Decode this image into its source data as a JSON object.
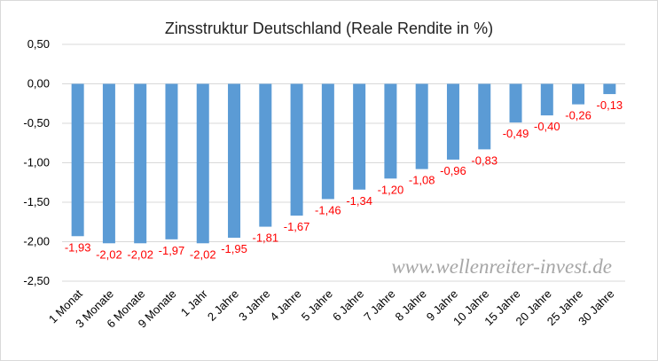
{
  "chart_data": {
    "type": "bar",
    "title": "Zinsstruktur Deutschland (Reale Rendite in %)",
    "categories": [
      "1 Monat",
      "3 Monate",
      "6 Monate",
      "9 Monate",
      "1 Jahr",
      "2 Jahre",
      "3 Jahre",
      "4 Jahre",
      "5 Jahre",
      "6 Jahre",
      "7 Jahre",
      "8 Jahre",
      "9 Jahre",
      "10 Jahre",
      "15 Jahre",
      "20 Jahre",
      "25 Jahre",
      "30 Jahre"
    ],
    "values": [
      -1.93,
      -2.02,
      -2.02,
      -1.97,
      -2.02,
      -1.95,
      -1.81,
      -1.67,
      -1.46,
      -1.34,
      -1.2,
      -1.08,
      -0.96,
      -0.83,
      -0.49,
      -0.4,
      -0.26,
      -0.13
    ],
    "data_labels": [
      "-1,93",
      "-2,02",
      "-2,02",
      "-1,97",
      "-2,02",
      "-1,95",
      "-1,81",
      "-1,67",
      "-1,46",
      "-1,34",
      "-1,20",
      "-1,08",
      "-0,96",
      "-0,83",
      "-0,49",
      "-0,40",
      "-0,26",
      "-0,13"
    ],
    "yticks": [
      0.5,
      0.0,
      -0.5,
      -1.0,
      -1.5,
      -2.0,
      -2.5
    ],
    "ytick_labels": [
      "0,50",
      "0,00",
      "-0,50",
      "-1,00",
      "-1,50",
      "-2,00",
      "-2,50"
    ],
    "ylim": [
      -2.5,
      0.5
    ],
    "xlabel": "",
    "ylabel": "",
    "grid": true,
    "legend": "none",
    "bar_color": "#5b9bd5",
    "label_color": "#ff0000",
    "grid_color": "#d9d9d9",
    "watermark": "www.wellenreiter-invest.de"
  }
}
